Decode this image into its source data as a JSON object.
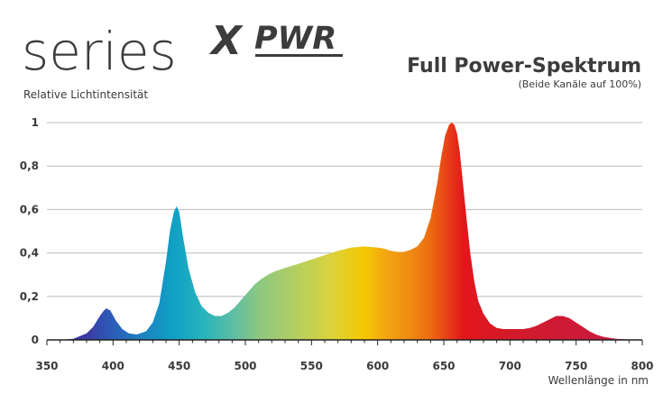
{
  "brand": {
    "series": "series",
    "x": "X",
    "pwr": "PWR"
  },
  "chart_data": {
    "type": "area",
    "title": "Full Power-Spektrum",
    "subtitle": "(Beide Kanäle auf 100%)",
    "ylabel": "Relative Lichtintensität",
    "xlabel": "Wellenlänge in nm",
    "xlim": [
      350,
      800
    ],
    "ylim": [
      0,
      1
    ],
    "grid": true,
    "x_ticks": [
      350,
      400,
      450,
      500,
      550,
      600,
      650,
      700,
      750,
      800
    ],
    "x_tick_labels": [
      "350",
      "400",
      "450",
      "500",
      "550",
      "600",
      "650",
      "700",
      "750",
      "800"
    ],
    "y_ticks": [
      0,
      0.2,
      0.4,
      0.6,
      0.8,
      1
    ],
    "y_tick_labels": [
      "0",
      "0,2",
      "0,4",
      "0,6",
      "0,8",
      "1"
    ],
    "series": [
      {
        "x": [
          350,
          360,
          370,
          380,
          385,
          390,
          393,
          395,
          398,
          402,
          407,
          412,
          418,
          425,
          430,
          435,
          440,
          443,
          446,
          448,
          450,
          453,
          457,
          462,
          467,
          472,
          477,
          482,
          487,
          492,
          497,
          502,
          507,
          512,
          517,
          522,
          527,
          532,
          540,
          550,
          560,
          570,
          580,
          590,
          600,
          605,
          610,
          615,
          620,
          625,
          630,
          635,
          640,
          645,
          648,
          651,
          654,
          656,
          658,
          660,
          662,
          664,
          667,
          670,
          673,
          676,
          680,
          685,
          690,
          695,
          700,
          705,
          710,
          715,
          720,
          725,
          730,
          735,
          740,
          745,
          750,
          755,
          760,
          765,
          770,
          775,
          780,
          790,
          800
        ],
        "y": [
          0.0,
          0.0,
          0.005,
          0.03,
          0.06,
          0.11,
          0.135,
          0.145,
          0.135,
          0.09,
          0.05,
          0.03,
          0.025,
          0.04,
          0.08,
          0.17,
          0.36,
          0.5,
          0.59,
          0.615,
          0.59,
          0.47,
          0.33,
          0.22,
          0.155,
          0.125,
          0.11,
          0.11,
          0.125,
          0.15,
          0.185,
          0.22,
          0.255,
          0.28,
          0.3,
          0.315,
          0.325,
          0.335,
          0.35,
          0.37,
          0.39,
          0.41,
          0.425,
          0.43,
          0.425,
          0.42,
          0.41,
          0.405,
          0.405,
          0.415,
          0.43,
          0.47,
          0.56,
          0.72,
          0.84,
          0.94,
          0.99,
          1.0,
          0.99,
          0.95,
          0.87,
          0.75,
          0.57,
          0.4,
          0.27,
          0.18,
          0.12,
          0.075,
          0.055,
          0.05,
          0.05,
          0.05,
          0.05,
          0.055,
          0.065,
          0.08,
          0.095,
          0.11,
          0.11,
          0.1,
          0.08,
          0.06,
          0.04,
          0.025,
          0.015,
          0.01,
          0.005,
          0.002,
          0.0
        ]
      }
    ],
    "fill_gradient": [
      {
        "nm": 380,
        "color": "#3c3aa0"
      },
      {
        "nm": 395,
        "color": "#2f55b5"
      },
      {
        "nm": 420,
        "color": "#1f7fc0"
      },
      {
        "nm": 445,
        "color": "#0fa0c5"
      },
      {
        "nm": 470,
        "color": "#2ab5bc"
      },
      {
        "nm": 490,
        "color": "#5cbda4"
      },
      {
        "nm": 510,
        "color": "#8cc782"
      },
      {
        "nm": 540,
        "color": "#b6cf5e"
      },
      {
        "nm": 565,
        "color": "#dcd23c"
      },
      {
        "nm": 590,
        "color": "#f5c800"
      },
      {
        "nm": 605,
        "color": "#f3a812"
      },
      {
        "nm": 625,
        "color": "#ef8a12"
      },
      {
        "nm": 640,
        "color": "#ec6a12"
      },
      {
        "nm": 652,
        "color": "#e84316"
      },
      {
        "nm": 665,
        "color": "#e3161b"
      },
      {
        "nm": 700,
        "color": "#d31a2a"
      },
      {
        "nm": 760,
        "color": "#cc1a3a"
      }
    ],
    "colors": {
      "grid": "#bcbcbc",
      "axis": "#222222"
    }
  }
}
